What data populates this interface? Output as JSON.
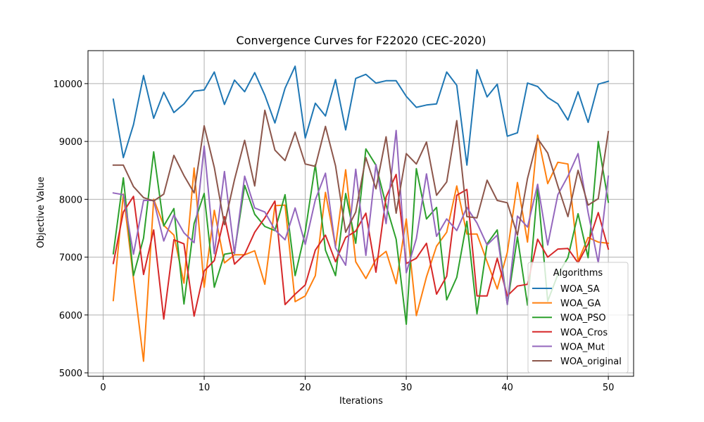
{
  "chart_data": {
    "type": "line",
    "title": "Convergence Curves for F22020 (CEC-2020)",
    "xlabel": "Iterations",
    "ylabel": "Objective Value",
    "xlim": [
      -1.5,
      52.5
    ],
    "ylim": [
      4940,
      10570
    ],
    "xticks": [
      0,
      10,
      20,
      30,
      40,
      50
    ],
    "yticks": [
      5000,
      6000,
      7000,
      8000,
      9000,
      10000
    ],
    "grid": true,
    "legend": {
      "title": "Algorithms",
      "position": "bottom-right"
    },
    "x": [
      1,
      2,
      3,
      4,
      5,
      6,
      7,
      8,
      9,
      10,
      11,
      12,
      13,
      14,
      15,
      16,
      17,
      18,
      19,
      20,
      21,
      22,
      23,
      24,
      25,
      26,
      27,
      28,
      29,
      30,
      31,
      32,
      33,
      34,
      35,
      36,
      37,
      38,
      39,
      40,
      41,
      42,
      43,
      44,
      45,
      46,
      47,
      48,
      49,
      50
    ],
    "series": [
      {
        "name": "WOA_SA",
        "color": "#1f77b4",
        "values": [
          9730,
          8720,
          9290,
          10140,
          9400,
          9850,
          9500,
          9650,
          9870,
          9890,
          10200,
          9640,
          10060,
          9860,
          10190,
          9800,
          9320,
          9920,
          10300,
          9060,
          9660,
          9440,
          10070,
          9200,
          10090,
          10160,
          10010,
          10050,
          10050,
          9780,
          9590,
          9630,
          9650,
          10200,
          9970,
          8590,
          10240,
          9770,
          9990,
          9090,
          9150,
          10010,
          9950,
          9760,
          9650,
          9370,
          9860,
          9330,
          9990,
          10040
        ]
      },
      {
        "name": "WOA_GA",
        "color": "#ff7f0e",
        "values": [
          6250,
          8090,
          6630,
          5200,
          8000,
          7550,
          7380,
          6550,
          8540,
          6480,
          7810,
          6900,
          7040,
          7040,
          7110,
          6530,
          7890,
          7900,
          6230,
          6330,
          6680,
          8120,
          7180,
          8510,
          6920,
          6630,
          6960,
          7100,
          6540,
          7660,
          5990,
          6660,
          7190,
          7430,
          8230,
          7400,
          7400,
          6920,
          6450,
          7080,
          8290,
          7260,
          9110,
          8270,
          8640,
          8610,
          6930,
          7340,
          7260,
          7240
        ]
      },
      {
        "name": "WOA_PSO",
        "color": "#2ca02c",
        "values": [
          7060,
          8370,
          6680,
          7330,
          8820,
          7540,
          7840,
          6190,
          7580,
          8100,
          6480,
          7050,
          7080,
          8240,
          7740,
          7530,
          7460,
          8080,
          6680,
          7440,
          8600,
          7120,
          6680,
          8100,
          7240,
          8870,
          8590,
          7900,
          7310,
          5840,
          8530,
          7660,
          7860,
          6260,
          6650,
          7620,
          6020,
          7230,
          7470,
          6180,
          7350,
          6170,
          8200,
          6240,
          6700,
          6990,
          7750,
          6990,
          9000,
          7950
        ]
      },
      {
        "name": "WOA_Cros",
        "color": "#d62728",
        "values": [
          6890,
          7780,
          8050,
          6700,
          7470,
          5930,
          7300,
          7230,
          5980,
          6760,
          6940,
          7700,
          6880,
          7050,
          7430,
          7680,
          7970,
          6180,
          6360,
          6520,
          7120,
          7380,
          6920,
          7340,
          7450,
          7760,
          6740,
          8040,
          8430,
          6890,
          6980,
          7240,
          6360,
          6670,
          8070,
          8170,
          6330,
          6330,
          6980,
          6330,
          6500,
          6530,
          7310,
          7000,
          7140,
          7150,
          6900,
          7230,
          7770,
          7140
        ]
      },
      {
        "name": "WOA_Mut",
        "color": "#9467bd",
        "values": [
          8110,
          8080,
          7050,
          7980,
          7980,
          7280,
          7730,
          7420,
          7250,
          8920,
          7060,
          8480,
          7060,
          8400,
          7850,
          7780,
          7470,
          7300,
          7850,
          7220,
          7990,
          8450,
          7160,
          6860,
          8520,
          7030,
          8600,
          7580,
          9190,
          6730,
          7320,
          8440,
          7360,
          7660,
          7460,
          7860,
          7590,
          7210,
          7380,
          6180,
          7710,
          7520,
          8260,
          7210,
          8080,
          8400,
          8790,
          7770,
          6900,
          8400
        ]
      },
      {
        "name": "WOA_original",
        "color": "#8c564b",
        "values": [
          8590,
          8590,
          8220,
          8030,
          7970,
          8090,
          8760,
          8410,
          8110,
          9270,
          8550,
          7560,
          8340,
          9020,
          8230,
          9540,
          8850,
          8670,
          9160,
          8610,
          8570,
          9260,
          8580,
          7430,
          7780,
          8720,
          8180,
          9080,
          7760,
          8790,
          8610,
          8990,
          8070,
          8300,
          9360,
          7700,
          7680,
          8330,
          7980,
          7940,
          7380,
          8360,
          9050,
          8800,
          8230,
          7700,
          8500,
          7900,
          8010,
          9170
        ]
      }
    ]
  }
}
